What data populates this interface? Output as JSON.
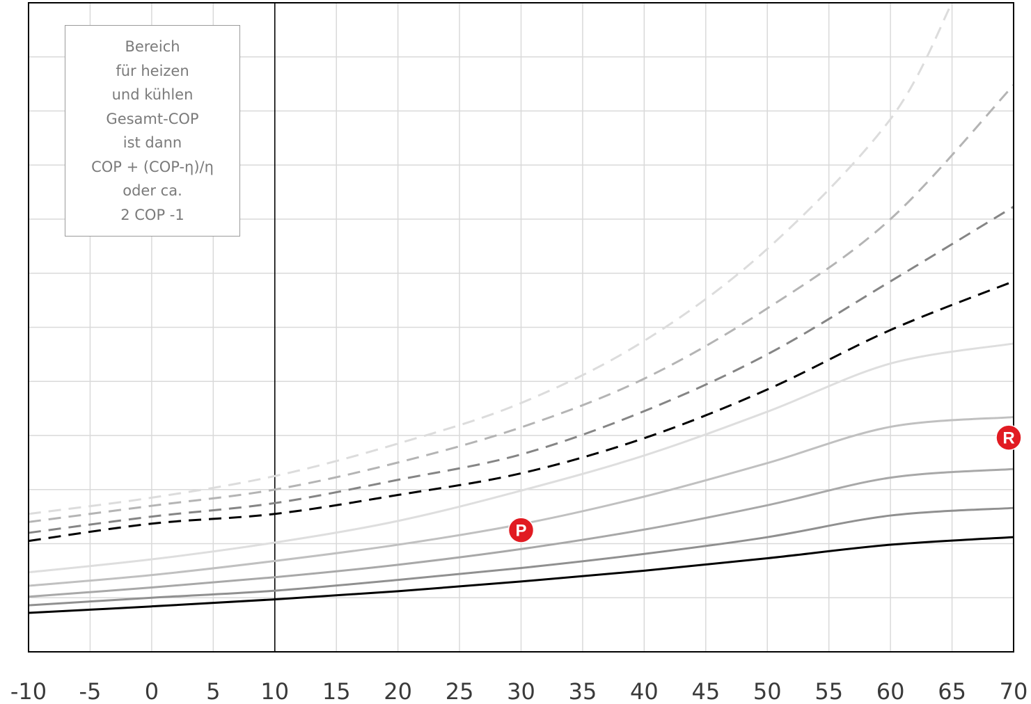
{
  "chart_data": {
    "type": "line",
    "xlim": [
      -10,
      70
    ],
    "ylim": [
      0,
      12
    ],
    "x_ticks": [
      "-10",
      "-5",
      "0",
      "5",
      "10",
      "15",
      "20",
      "25",
      "30",
      "35",
      "40",
      "45",
      "50",
      "55",
      "60",
      "65",
      "70"
    ],
    "grid": true,
    "reference_line_x": 10,
    "series": [
      {
        "style": "solid",
        "color": "#000000",
        "x": [
          -10,
          0,
          10,
          20,
          30,
          40,
          50,
          60,
          70
        ],
        "y": [
          0.72,
          0.84,
          0.97,
          1.12,
          1.3,
          1.5,
          1.73,
          1.98,
          2.12
        ]
      },
      {
        "style": "solid",
        "color": "#909090",
        "x": [
          -10,
          0,
          10,
          20,
          30,
          40,
          50,
          60,
          70
        ],
        "y": [
          0.86,
          1.0,
          1.13,
          1.33,
          1.55,
          1.81,
          2.12,
          2.52,
          2.66
        ]
      },
      {
        "style": "solid",
        "color": "#a8a8a8",
        "x": [
          -10,
          0,
          10,
          20,
          30,
          40,
          50,
          60,
          70
        ],
        "y": [
          1.02,
          1.19,
          1.38,
          1.61,
          1.9,
          2.26,
          2.71,
          3.22,
          3.38
        ]
      },
      {
        "style": "solid",
        "color": "#c0c0c0",
        "x": [
          -10,
          0,
          10,
          20,
          30,
          40,
          50,
          60,
          70
        ],
        "y": [
          1.22,
          1.42,
          1.68,
          1.98,
          2.36,
          2.87,
          3.49,
          4.16,
          4.34
        ]
      },
      {
        "style": "solid",
        "color": "#dedede",
        "x": [
          -10,
          0,
          10,
          20,
          30,
          40,
          50,
          60,
          70
        ],
        "y": [
          1.47,
          1.71,
          2.02,
          2.42,
          2.98,
          3.63,
          4.44,
          5.33,
          5.7
        ]
      },
      {
        "style": "dashed",
        "color": "#000000",
        "x": [
          -10,
          0,
          10,
          20,
          30,
          40,
          50,
          60,
          70
        ],
        "y": [
          2.05,
          2.37,
          2.55,
          2.9,
          3.3,
          3.95,
          4.85,
          5.95,
          6.85
        ]
      },
      {
        "style": "dashed",
        "color": "#858585",
        "x": [
          -10,
          0,
          10,
          20,
          30,
          40,
          50,
          60,
          70
        ],
        "y": [
          2.2,
          2.5,
          2.75,
          3.18,
          3.65,
          4.45,
          5.5,
          6.85,
          8.23
        ]
      },
      {
        "style": "dashed",
        "color": "#b4b4b4",
        "x": [
          -10,
          0,
          10,
          20,
          30,
          40,
          50,
          60,
          70
        ],
        "y": [
          2.4,
          2.7,
          3.0,
          3.5,
          4.15,
          5.05,
          6.35,
          8.0,
          10.48
        ]
      },
      {
        "style": "dashed",
        "color": "#dcdcdc",
        "x": [
          -10,
          0,
          10,
          20,
          30,
          40,
          50,
          60,
          65
        ],
        "y": [
          2.55,
          2.85,
          3.25,
          3.85,
          4.6,
          5.75,
          7.45,
          9.85,
          12.0
        ]
      }
    ],
    "markers": [
      {
        "label": "P",
        "x": 30,
        "y": 2.25,
        "color": "#e11b22"
      },
      {
        "label": "R",
        "x": 70,
        "y": 3.96,
        "color": "#e11b22"
      }
    ],
    "annotation": [
      "Bereich",
      "für heizen",
      "und kühlen",
      "Gesamt-COP",
      "ist dann",
      "COP + (COP-η)/η",
      "oder ca.",
      "2  COP -1"
    ]
  }
}
